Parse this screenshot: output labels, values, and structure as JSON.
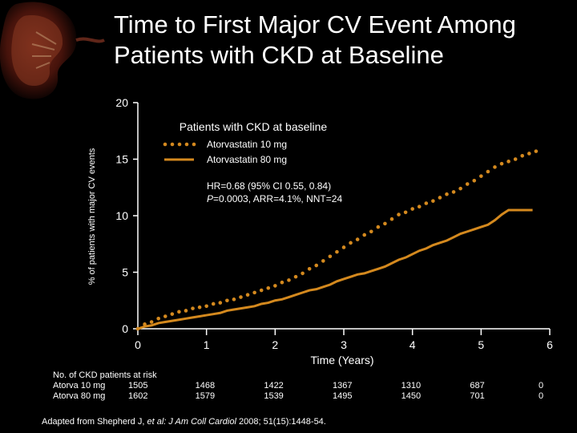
{
  "title_line1": "Time to First Major CV Event Among",
  "title_line2": "Patients with CKD at Baseline",
  "footnote_prefix": "Adapted from Shepherd J, ",
  "footnote_italic": "et al: J Am Coll Cardiol",
  "footnote_suffix": " 2008; 51(15):1448-54.",
  "colors": {
    "accent": "#D4891E",
    "background": "#000000",
    "text": "#FFFFFF"
  },
  "risk_table": {
    "header": "No. of CKD patients at risk",
    "rows": [
      {
        "label": "Atorva 10 mg",
        "values": [
          "1505",
          "1468",
          "1422",
          "1367",
          "1310",
          "687",
          "0"
        ]
      },
      {
        "label": "Atorva 80 mg",
        "values": [
          "1602",
          "1579",
          "1539",
          "1495",
          "1450",
          "701",
          "0"
        ]
      }
    ]
  },
  "chart_data": {
    "type": "line",
    "title": "Patients with CKD at baseline",
    "xlabel": "Time (Years)",
    "ylabel": "% of patients with major CV events",
    "xlim": [
      0,
      6
    ],
    "ylim": [
      0,
      20
    ],
    "xticks": [
      "0",
      "1",
      "2",
      "3",
      "4",
      "5",
      "6"
    ],
    "yticks": [
      "0",
      "5",
      "10",
      "15",
      "20"
    ],
    "legend_position": "top-center",
    "annotation_line1": "HR=0.68 (95% CI 0.55, 0.84)",
    "annotation_line2_italic": "P",
    "annotation_line2_rest": "=0.0003, ARR=4.1%, NNT=24",
    "series": [
      {
        "name": "Atorvastatin 10 mg",
        "style": "dotted",
        "color": "#D4891E",
        "points": [
          [
            0,
            0
          ],
          [
            0.1,
            0.4
          ],
          [
            0.2,
            0.6
          ],
          [
            0.3,
            0.9
          ],
          [
            0.4,
            1.1
          ],
          [
            0.5,
            1.3
          ],
          [
            0.6,
            1.5
          ],
          [
            0.7,
            1.6
          ],
          [
            0.8,
            1.8
          ],
          [
            0.9,
            1.9
          ],
          [
            1.0,
            2.0
          ],
          [
            1.1,
            2.2
          ],
          [
            1.2,
            2.3
          ],
          [
            1.3,
            2.5
          ],
          [
            1.4,
            2.6
          ],
          [
            1.5,
            2.8
          ],
          [
            1.6,
            3.0
          ],
          [
            1.7,
            3.2
          ],
          [
            1.8,
            3.4
          ],
          [
            1.9,
            3.6
          ],
          [
            2.0,
            3.8
          ],
          [
            2.1,
            4.1
          ],
          [
            2.2,
            4.3
          ],
          [
            2.3,
            4.6
          ],
          [
            2.4,
            4.9
          ],
          [
            2.5,
            5.3
          ],
          [
            2.6,
            5.6
          ],
          [
            2.7,
            6.0
          ],
          [
            2.8,
            6.4
          ],
          [
            2.9,
            6.8
          ],
          [
            3.0,
            7.2
          ],
          [
            3.1,
            7.6
          ],
          [
            3.2,
            7.9
          ],
          [
            3.3,
            8.3
          ],
          [
            3.4,
            8.6
          ],
          [
            3.5,
            9.0
          ],
          [
            3.6,
            9.3
          ],
          [
            3.7,
            9.7
          ],
          [
            3.8,
            10.1
          ],
          [
            3.9,
            10.3
          ],
          [
            4.0,
            10.6
          ],
          [
            4.1,
            10.8
          ],
          [
            4.2,
            11.1
          ],
          [
            4.3,
            11.3
          ],
          [
            4.4,
            11.6
          ],
          [
            4.5,
            11.9
          ],
          [
            4.6,
            12.1
          ],
          [
            4.7,
            12.4
          ],
          [
            4.8,
            12.8
          ],
          [
            4.9,
            13.1
          ],
          [
            5.0,
            13.5
          ],
          [
            5.1,
            13.9
          ],
          [
            5.2,
            14.3
          ],
          [
            5.3,
            14.6
          ],
          [
            5.4,
            14.8
          ],
          [
            5.5,
            15.0
          ],
          [
            5.6,
            15.3
          ],
          [
            5.7,
            15.5
          ],
          [
            5.8,
            15.7
          ]
        ]
      },
      {
        "name": "Atorvastatin 80 mg",
        "style": "solid",
        "color": "#D4891E",
        "points": [
          [
            0,
            0
          ],
          [
            0.1,
            0.2
          ],
          [
            0.2,
            0.3
          ],
          [
            0.3,
            0.5
          ],
          [
            0.4,
            0.6
          ],
          [
            0.5,
            0.7
          ],
          [
            0.6,
            0.8
          ],
          [
            0.7,
            0.9
          ],
          [
            0.8,
            1.0
          ],
          [
            0.9,
            1.1
          ],
          [
            1.0,
            1.2
          ],
          [
            1.1,
            1.3
          ],
          [
            1.2,
            1.4
          ],
          [
            1.3,
            1.6
          ],
          [
            1.4,
            1.7
          ],
          [
            1.5,
            1.8
          ],
          [
            1.6,
            1.9
          ],
          [
            1.7,
            2.0
          ],
          [
            1.8,
            2.2
          ],
          [
            1.9,
            2.3
          ],
          [
            2.0,
            2.5
          ],
          [
            2.1,
            2.6
          ],
          [
            2.2,
            2.8
          ],
          [
            2.3,
            3.0
          ],
          [
            2.4,
            3.2
          ],
          [
            2.5,
            3.4
          ],
          [
            2.6,
            3.5
          ],
          [
            2.7,
            3.7
          ],
          [
            2.8,
            3.9
          ],
          [
            2.9,
            4.2
          ],
          [
            3.0,
            4.4
          ],
          [
            3.1,
            4.6
          ],
          [
            3.2,
            4.8
          ],
          [
            3.3,
            4.9
          ],
          [
            3.4,
            5.1
          ],
          [
            3.5,
            5.3
          ],
          [
            3.6,
            5.5
          ],
          [
            3.7,
            5.8
          ],
          [
            3.8,
            6.1
          ],
          [
            3.9,
            6.3
          ],
          [
            4.0,
            6.6
          ],
          [
            4.1,
            6.9
          ],
          [
            4.2,
            7.1
          ],
          [
            4.3,
            7.4
          ],
          [
            4.4,
            7.6
          ],
          [
            4.5,
            7.8
          ],
          [
            4.6,
            8.1
          ],
          [
            4.7,
            8.4
          ],
          [
            4.8,
            8.6
          ],
          [
            4.9,
            8.8
          ],
          [
            5.0,
            9.0
          ],
          [
            5.1,
            9.2
          ],
          [
            5.2,
            9.6
          ],
          [
            5.3,
            10.1
          ],
          [
            5.35,
            10.3
          ],
          [
            5.4,
            10.5
          ],
          [
            5.5,
            10.5
          ],
          [
            5.6,
            10.5
          ],
          [
            5.7,
            10.5
          ],
          [
            5.75,
            10.5
          ]
        ]
      }
    ]
  }
}
